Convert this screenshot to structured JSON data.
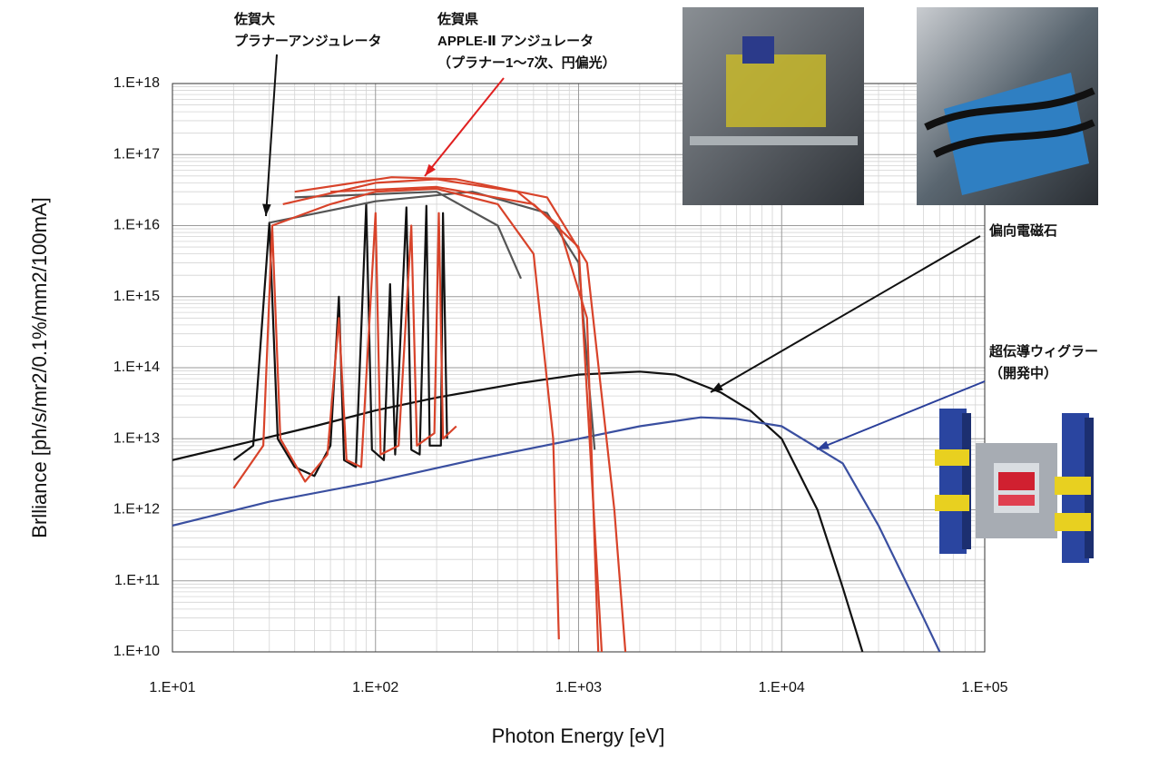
{
  "chart_data": {
    "type": "line",
    "xlabel": "Photon Energy [eV]",
    "ylabel": "Brlliance [ph/s/mr2/0.1%/mm2/100mA]",
    "xscale": "log",
    "yscale": "log",
    "grid": true,
    "xlim": [
      10,
      100000
    ],
    "ylim": [
      10000000000.0,
      1e+18
    ],
    "xticks": [
      {
        "value": 10,
        "label": "1.E+01"
      },
      {
        "value": 100,
        "label": "1.E+02"
      },
      {
        "value": 1000,
        "label": "1.E+03"
      },
      {
        "value": 10000,
        "label": "1.E+04"
      },
      {
        "value": 100000,
        "label": "1.E+05"
      }
    ],
    "yticks": [
      {
        "value": 10000000000.0,
        "label": "1.E+10"
      },
      {
        "value": 100000000000.0,
        "label": "1.E+11"
      },
      {
        "value": 1000000000000.0,
        "label": "1.E+12"
      },
      {
        "value": 10000000000000.0,
        "label": "1.E+13"
      },
      {
        "value": 100000000000000.0,
        "label": "1.E+14"
      },
      {
        "value": 1000000000000000.0,
        "label": "1.E+15"
      },
      {
        "value": 1e+16,
        "label": "1.E+16"
      },
      {
        "value": 1e+17,
        "label": "1.E+17"
      },
      {
        "value": 1e+18,
        "label": "1.E+18"
      }
    ],
    "series": [
      {
        "color": "#111111",
        "x": [
          10,
          20,
          50,
          100,
          200,
          500,
          1000,
          2000,
          3000,
          5000,
          7000,
          10000,
          15000,
          20000,
          25000
        ],
        "values": [
          5000000000000.0,
          8000000000000.0,
          15000000000000.0,
          25000000000000.0,
          38000000000000.0,
          60000000000000.0,
          80000000000000.0,
          88000000000000.0,
          80000000000000.0,
          45000000000000.0,
          25000000000000.0,
          10000000000000.0,
          1000000000000.0,
          80000000000.0,
          10000000000.0
        ]
      },
      {
        "color": "#3a4fa0",
        "x": [
          10,
          30,
          100,
          300,
          1000,
          2000,
          4000,
          6000,
          10000,
          20000,
          30000,
          50000,
          60000
        ],
        "values": [
          600000000000.0,
          1300000000000.0,
          2500000000000.0,
          5000000000000.0,
          10000000000000.0,
          15000000000000.0,
          20000000000000.0,
          19000000000000.0,
          15000000000000.0,
          4500000000000.0,
          600000000000.0,
          30000000000.0,
          10000000000.0
        ]
      },
      {
        "color": "#111111",
        "x": [
          20,
          25,
          30,
          33,
          40,
          50,
          60,
          66,
          70,
          80,
          90,
          96,
          110,
          118,
          125,
          142,
          150,
          165,
          178,
          185,
          210,
          215,
          225
        ],
        "values": [
          5000000000000.0,
          8000000000000.0,
          1.1e+16,
          10000000000000.0,
          4000000000000.0,
          3000000000000.0,
          8000000000000.0,
          1000000000000000.0,
          5000000000000.0,
          4000000000000.0,
          2e+16,
          7000000000000.0,
          5000000000000.0,
          1500000000000000.0,
          6000000000000.0,
          1.8e+16,
          7000000000000.0,
          6000000000000.0,
          1.9e+16,
          8000000000000.0,
          8000000000000.0,
          1.5e+16,
          10000000000000.0
        ]
      },
      {
        "color": "#d8432a",
        "x": [
          20,
          28,
          31,
          34,
          45,
          58,
          66,
          72,
          85,
          100,
          106,
          130,
          150,
          160,
          195,
          205,
          215,
          250
        ],
        "values": [
          2000000000000.0,
          8000000000000.0,
          1e+16,
          10000000000000.0,
          2500000000000.0,
          6000000000000.0,
          500000000000000.0,
          5000000000000.0,
          4000000000000.0,
          1.5e+16,
          6000000000000.0,
          8000000000000.0,
          1e+16,
          8000000000000.0,
          12000000000000.0,
          1.5e+16,
          10000000000000.0,
          15000000000000.0
        ]
      },
      {
        "color": "#555555",
        "x": [
          30,
          100,
          300,
          700,
          1000,
          1200
        ],
        "values": [
          1.1e+16,
          2.2e+16,
          3e+16,
          1.5e+16,
          3000000000000000.0,
          7000000000000.0
        ]
      },
      {
        "color": "#555555",
        "x": [
          40,
          200,
          400,
          520
        ],
        "values": [
          2.5e+16,
          3e+16,
          1e+16,
          1800000000000000.0
        ]
      },
      {
        "color": "#d8432a",
        "x": [
          31,
          60,
          100,
          200,
          400,
          600,
          750,
          800
        ],
        "values": [
          1e+16,
          2e+16,
          3e+16,
          3.3e+16,
          2e+16,
          4000000000000000.0,
          10000000000000.0,
          15000000000.0
        ]
      },
      {
        "color": "#d8432a",
        "x": [
          35,
          100,
          200,
          500,
          800,
          1100,
          1250
        ],
        "values": [
          2e+16,
          4e+16,
          4.5e+16,
          3e+16,
          1e+16,
          500000000000000.0,
          10000000000.0
        ]
      },
      {
        "color": "#d8432a",
        "x": [
          40,
          120,
          250,
          700,
          1100,
          1500,
          1700
        ],
        "values": [
          3e+16,
          4.8e+16,
          4.5e+16,
          2.5e+16,
          3000000000000000.0,
          1000000000000.0,
          10000000000.0
        ]
      },
      {
        "color": "#d8432a",
        "x": [
          60,
          200,
          600,
          1000,
          1300
        ],
        "values": [
          3e+16,
          3.5e+16,
          2e+16,
          5000000000000000.0,
          10000000000.0
        ]
      }
    ],
    "annotations": [
      {
        "lines": [
          "佐賀大",
          "プラナーアンジュレータ"
        ],
        "color": "#111111"
      },
      {
        "lines": [
          "佐賀県",
          "APPLE-Ⅱ アンジュレータ",
          "（プラナー1～7次、円偏光）"
        ],
        "color": "#e02020"
      },
      {
        "lines": [
          "偏向電磁石"
        ],
        "color": "#111111"
      },
      {
        "lines": [
          "超伝導ウィグラー",
          "（開発中）"
        ],
        "color": "#2a3f9a"
      }
    ]
  }
}
